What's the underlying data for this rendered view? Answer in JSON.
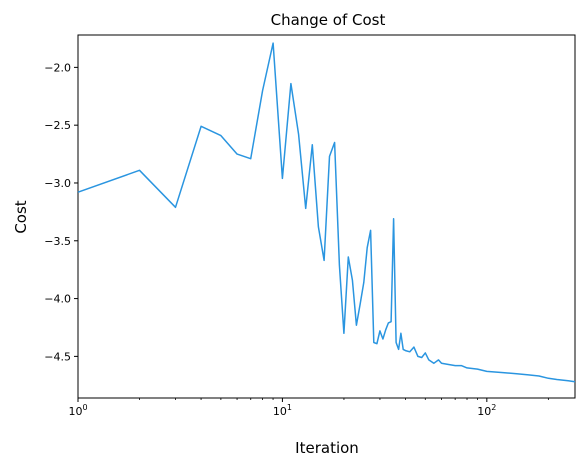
{
  "chart_data": {
    "type": "line",
    "title": "Change of Cost",
    "xlabel": "Iteration",
    "ylabel": "Cost",
    "xscale": "log",
    "xlim": [
      1,
      270
    ],
    "ylim": [
      -4.86,
      -1.72
    ],
    "grid": false,
    "line_color": "#2a95e0",
    "x_ticks": [
      {
        "value": 1,
        "base": "10",
        "exp": "0"
      },
      {
        "value": 10,
        "base": "10",
        "exp": "1"
      },
      {
        "value": 100,
        "base": "10",
        "exp": "2"
      }
    ],
    "y_ticks": [
      {
        "value": -2.0,
        "label": "−2.0"
      },
      {
        "value": -2.5,
        "label": "−2.5"
      },
      {
        "value": -3.0,
        "label": "−3.0"
      },
      {
        "value": -3.5,
        "label": "−3.5"
      },
      {
        "value": -4.0,
        "label": "−4.0"
      },
      {
        "value": -4.5,
        "label": "−4.5"
      }
    ],
    "series": [
      {
        "x": [
          1,
          2,
          3,
          4,
          5,
          6,
          7,
          8,
          9,
          10,
          11,
          12,
          13,
          14,
          15,
          16,
          17,
          18,
          19,
          20,
          21,
          22,
          23,
          24,
          25,
          26,
          27,
          28,
          29,
          30,
          31,
          32,
          33,
          34,
          35,
          36,
          37,
          38,
          39,
          40,
          42,
          44,
          46,
          48,
          50,
          52,
          55,
          58,
          60,
          65,
          70,
          75,
          80,
          90,
          100,
          120,
          140,
          160,
          180,
          200,
          220,
          250,
          270
        ],
        "y": [
          -3.08,
          -2.89,
          -3.21,
          -2.51,
          -2.59,
          -2.75,
          -2.79,
          -2.2,
          -1.79,
          -2.96,
          -2.14,
          -2.58,
          -3.22,
          -2.67,
          -3.38,
          -3.67,
          -2.77,
          -2.65,
          -3.71,
          -4.3,
          -3.64,
          -3.84,
          -4.23,
          -4.05,
          -3.86,
          -3.56,
          -3.41,
          -4.38,
          -4.39,
          -4.28,
          -4.35,
          -4.27,
          -4.21,
          -4.2,
          -3.31,
          -4.38,
          -4.44,
          -4.3,
          -4.44,
          -4.45,
          -4.46,
          -4.42,
          -4.5,
          -4.51,
          -4.47,
          -4.53,
          -4.56,
          -4.53,
          -4.56,
          -4.57,
          -4.58,
          -4.58,
          -4.6,
          -4.61,
          -4.63,
          -4.64,
          -4.65,
          -4.66,
          -4.67,
          -4.69,
          -4.7,
          -4.71,
          -4.72
        ]
      }
    ]
  }
}
